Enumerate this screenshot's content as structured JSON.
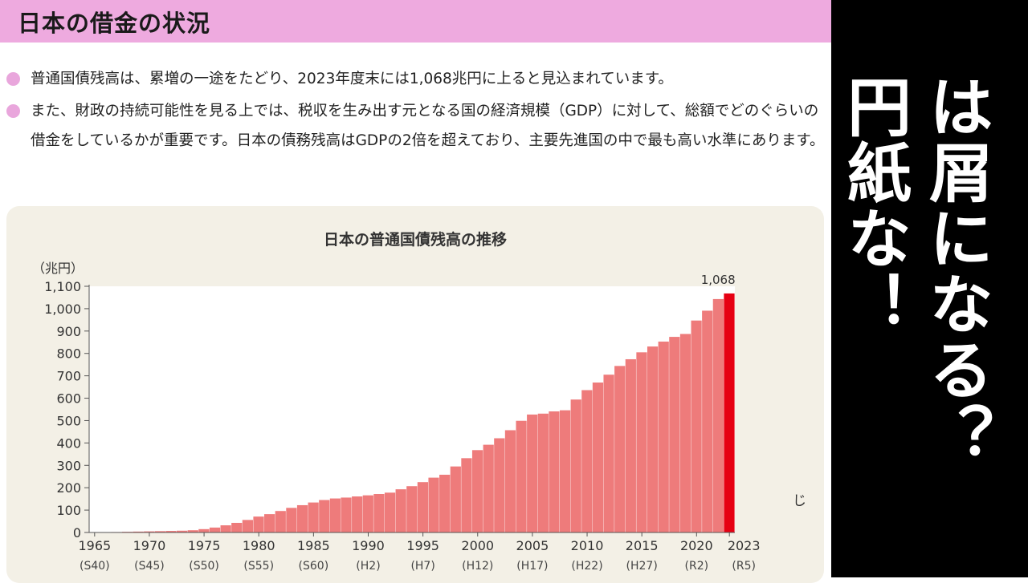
{
  "header": {
    "title": "日本の借金の状況"
  },
  "bullets": [
    "普通国債残高は、累増の一途をたどり、2023年度末には1,068兆円に上ると見込まれています。",
    "また、財政の持続可能性を見る上では、税収を生み出す元となる国の経済規模（GDP）に対して、総額でどのぐらいの借金をしているかが重要です。日本の債務残高はGDPの2倍を超えており、主要先進国の中で最も高い水準にあります。"
  ],
  "overlay": {
    "column_1": "は屑になる？",
    "column_2": "円紙な！"
  },
  "stray_char": "じ",
  "colors": {
    "header": "#eeaadf",
    "bullet": "#e9a6dc",
    "bar": "#ee7b7b",
    "highlight_bar": "#e60012",
    "panel": "#f3f0e6",
    "overlay_bg": "#000000",
    "overlay_text": "#ffffff"
  },
  "chart_data": {
    "type": "bar",
    "title": "日本の普通国債残高の推移",
    "ylabel": "（兆円）",
    "xlabel": "",
    "ylim": [
      0,
      1100
    ],
    "yticks": [
      0,
      100,
      200,
      300,
      400,
      500,
      600,
      700,
      800,
      900,
      1000,
      1100
    ],
    "ytick_labels": [
      "0",
      "100",
      "200",
      "300",
      "400",
      "500",
      "600",
      "700",
      "800",
      "900",
      "1,000",
      "1,100"
    ],
    "x_tick_years": [
      1965,
      1970,
      1975,
      1980,
      1985,
      1990,
      1995,
      2000,
      2005,
      2010,
      2015,
      2020,
      2023
    ],
    "x_tick_labels": [
      "1965",
      "1970",
      "1975",
      "1980",
      "1985",
      "1990",
      "1995",
      "2000",
      "2005",
      "2010",
      "2015",
      "2020",
      "2023"
    ],
    "x_tick_era_labels": [
      "(S40)",
      "(S45)",
      "(S50)",
      "(S55)",
      "(S60)",
      "(H2)",
      "(H7)",
      "(H12)",
      "(H17)",
      "(H22)",
      "(H27)",
      "(R2)",
      "(R5)"
    ],
    "years": [
      1965,
      1966,
      1967,
      1968,
      1969,
      1970,
      1971,
      1972,
      1973,
      1974,
      1975,
      1976,
      1977,
      1978,
      1979,
      1980,
      1981,
      1982,
      1983,
      1984,
      1985,
      1986,
      1987,
      1988,
      1989,
      1990,
      1991,
      1992,
      1993,
      1994,
      1995,
      1996,
      1997,
      1998,
      1999,
      2000,
      2001,
      2002,
      2003,
      2004,
      2005,
      2006,
      2007,
      2008,
      2009,
      2010,
      2011,
      2012,
      2013,
      2014,
      2015,
      2016,
      2017,
      2018,
      2019,
      2020,
      2021,
      2022,
      2023
    ],
    "values": [
      0,
      1,
      2,
      3,
      4,
      5,
      6,
      7,
      8,
      10,
      15,
      22,
      32,
      43,
      56,
      71,
      82,
      96,
      110,
      122,
      134,
      145,
      152,
      156,
      161,
      166,
      172,
      178,
      193,
      207,
      225,
      245,
      258,
      295,
      332,
      368,
      392,
      421,
      457,
      499,
      527,
      531,
      541,
      546,
      594,
      636,
      670,
      705,
      744,
      774,
      805,
      831,
      853,
      874,
      887,
      947,
      991,
      1043,
      1068
    ],
    "highlight_index": 58,
    "annotation": "1,068"
  }
}
